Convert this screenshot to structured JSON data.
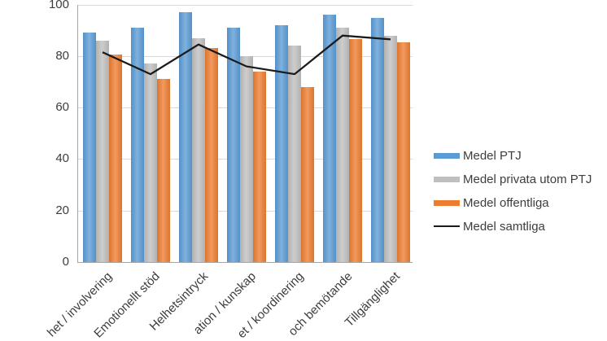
{
  "chart_data": {
    "type": "bar",
    "title": "",
    "xlabel": "",
    "ylabel": "",
    "categories": [
      "het / involvering",
      "Emotionellt stöd",
      "Helhetsintryck",
      "ation / kunskap",
      "et / koordinering",
      "och bemötande",
      "Tillgänglighet"
    ],
    "series": [
      {
        "name": "Medel PTJ",
        "type": "bar",
        "color": "#5B9BD5",
        "values": [
          89,
          91,
          97,
          91,
          92,
          96,
          95
        ]
      },
      {
        "name": "Medel privata utom PTJ",
        "type": "bar",
        "color": "#BFBFBF",
        "values": [
          86,
          77,
          87,
          80,
          84,
          91,
          88
        ]
      },
      {
        "name": "Medel offentliga",
        "type": "bar",
        "color": "#ED7D31",
        "values": [
          80.5,
          71,
          83,
          74,
          68,
          86.5,
          85.5
        ]
      },
      {
        "name": "Medel samtliga",
        "type": "line",
        "color": "#1A1A1A",
        "values": [
          81.5,
          73,
          84.5,
          76,
          73,
          88,
          86.5
        ]
      }
    ],
    "ylim": [
      0,
      100
    ],
    "yticks": [
      0,
      20,
      40,
      60,
      80,
      100
    ],
    "grid": true,
    "legend_position": "right",
    "colors": {
      "gridline": "#D9D9D9",
      "axis": "#A6A6A6",
      "tick_text": "#3D3D3D",
      "background": "#FFFFFF"
    }
  }
}
